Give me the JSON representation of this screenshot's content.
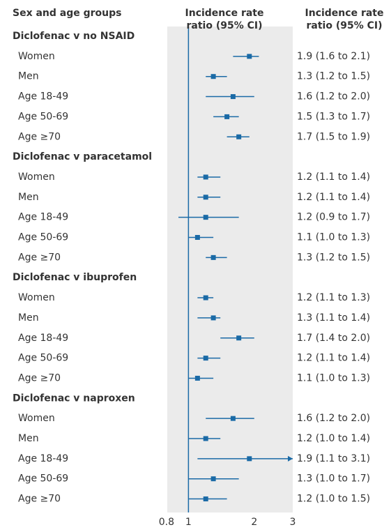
{
  "chart_data": {
    "type": "forest",
    "column_headers": [
      "Sex and age groups",
      "Incidence rate ratio (95% CI)",
      "Incidence rate ratio (95% CI)"
    ],
    "xscale": "log",
    "xlim": [
      0.8,
      3
    ],
    "xticks": [
      0.8,
      1,
      2,
      3
    ],
    "reference_line": 1,
    "color": "#1a6aa6",
    "panel_color": "#ebebeb",
    "groups": [
      {
        "name": "Diclofenac v no NSAID",
        "rows": [
          {
            "label": "Women",
            "estimate": 1.9,
            "lower": 1.6,
            "upper": 2.1,
            "value_label": "1.9 (1.6 to 2.1)"
          },
          {
            "label": "Men",
            "estimate": 1.3,
            "lower": 1.2,
            "upper": 1.5,
            "value_label": "1.3 (1.2 to 1.5)"
          },
          {
            "label": "Age 18-49",
            "estimate": 1.6,
            "lower": 1.2,
            "upper": 2.0,
            "value_label": "1.6 (1.2 to 2.0)"
          },
          {
            "label": "Age 50-69",
            "estimate": 1.5,
            "lower": 1.3,
            "upper": 1.7,
            "value_label": "1.5 (1.3 to 1.7)"
          },
          {
            "label": "Age ≥70",
            "estimate": 1.7,
            "lower": 1.5,
            "upper": 1.9,
            "value_label": "1.7 (1.5 to 1.9)"
          }
        ]
      },
      {
        "name": "Diclofenac v paracetamol",
        "rows": [
          {
            "label": "Women",
            "estimate": 1.2,
            "lower": 1.1,
            "upper": 1.4,
            "value_label": "1.2 (1.1 to 1.4)"
          },
          {
            "label": "Men",
            "estimate": 1.2,
            "lower": 1.1,
            "upper": 1.4,
            "value_label": "1.2 (1.1 to 1.4)"
          },
          {
            "label": "Age 18-49",
            "estimate": 1.2,
            "lower": 0.9,
            "upper": 1.7,
            "value_label": "1.2 (0.9 to 1.7)"
          },
          {
            "label": "Age 50-69",
            "estimate": 1.1,
            "lower": 1.0,
            "upper": 1.3,
            "value_label": "1.1 (1.0 to 1.3)"
          },
          {
            "label": "Age ≥70",
            "estimate": 1.3,
            "lower": 1.2,
            "upper": 1.5,
            "value_label": "1.3 (1.2 to 1.5)"
          }
        ]
      },
      {
        "name": "Diclofenac v ibuprofen",
        "rows": [
          {
            "label": "Women",
            "estimate": 1.2,
            "lower": 1.1,
            "upper": 1.3,
            "value_label": "1.2 (1.1 to 1.3)"
          },
          {
            "label": "Men",
            "estimate": 1.3,
            "lower": 1.1,
            "upper": 1.4,
            "value_label": "1.3 (1.1 to 1.4)"
          },
          {
            "label": "Age 18-49",
            "estimate": 1.7,
            "lower": 1.4,
            "upper": 2.0,
            "value_label": "1.7 (1.4 to 2.0)"
          },
          {
            "label": "Age 50-69",
            "estimate": 1.2,
            "lower": 1.1,
            "upper": 1.4,
            "value_label": "1.2 (1.1 to 1.4)"
          },
          {
            "label": "Age ≥70",
            "estimate": 1.1,
            "lower": 1.0,
            "upper": 1.3,
            "value_label": "1.1 (1.0 to 1.3)"
          }
        ]
      },
      {
        "name": "Diclofenac v naproxen",
        "rows": [
          {
            "label": "Women",
            "estimate": 1.6,
            "lower": 1.2,
            "upper": 2.0,
            "value_label": "1.6 (1.2 to 2.0)"
          },
          {
            "label": "Men",
            "estimate": 1.2,
            "lower": 1.0,
            "upper": 1.4,
            "value_label": "1.2 (1.0 to 1.4)"
          },
          {
            "label": "Age 18-49",
            "estimate": 1.9,
            "lower": 1.1,
            "upper": 3.1,
            "value_label": "1.9 (1.1 to 3.1)"
          },
          {
            "label": "Age 50-69",
            "estimate": 1.3,
            "lower": 1.0,
            "upper": 1.7,
            "value_label": "1.3 (1.0 to 1.7)"
          },
          {
            "label": "Age ≥70",
            "estimate": 1.2,
            "lower": 1.0,
            "upper": 1.5,
            "value_label": "1.2 (1.0 to 1.5)"
          }
        ]
      }
    ]
  }
}
